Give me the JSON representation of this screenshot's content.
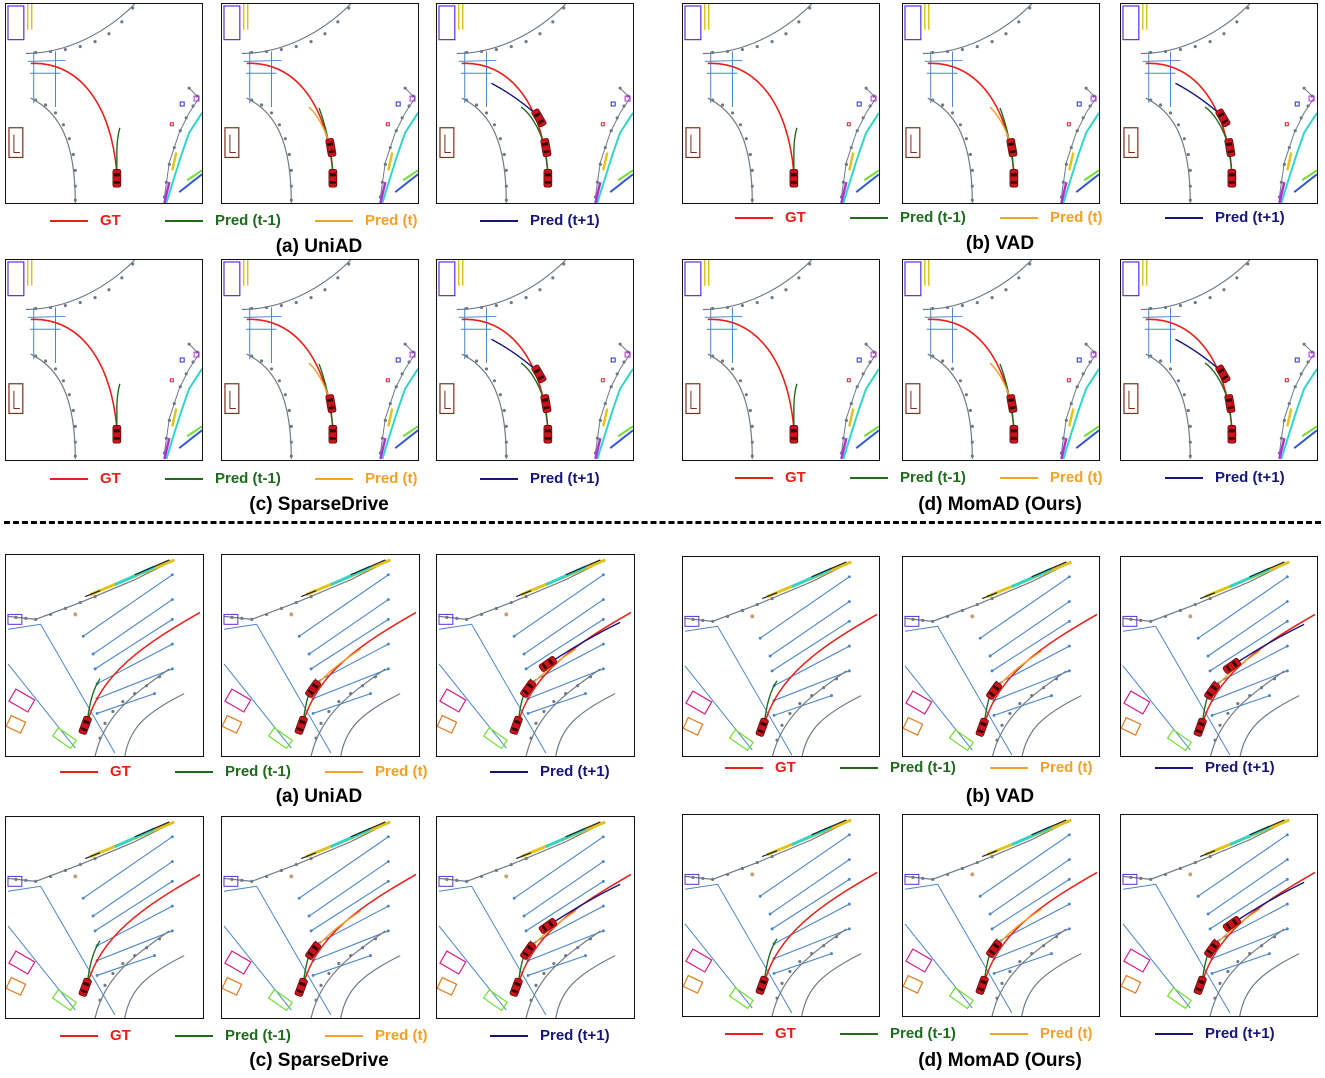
{
  "legend": [
    {
      "label": "GT",
      "color": "#e8201a"
    },
    {
      "label": "Pred (t-1)",
      "color": "#1e6b1e"
    },
    {
      "label": "Pred (t)",
      "color": "#f5a027"
    },
    {
      "label": "Pred (t+1)",
      "color": "#15157a"
    }
  ],
  "top": {
    "captions": [
      "(a) UniAD",
      "(b) VAD",
      "(c) SparseDrive",
      "(d) MomAD (Ours)"
    ]
  },
  "bottom": {
    "captions": [
      "(a) UniAD",
      "(b) VAD",
      "(c) SparseDrive",
      "(d) MomAD (Ours)"
    ]
  },
  "colors": {
    "map_gray": "#6f7a85",
    "map_blue": "#4a86c8",
    "ego_red": "#c8141a",
    "gt_red": "#e8201a",
    "pred_prev_green": "#1e6b1e",
    "pred_now_orange": "#f5a027",
    "pred_next_navy": "#15157a"
  }
}
